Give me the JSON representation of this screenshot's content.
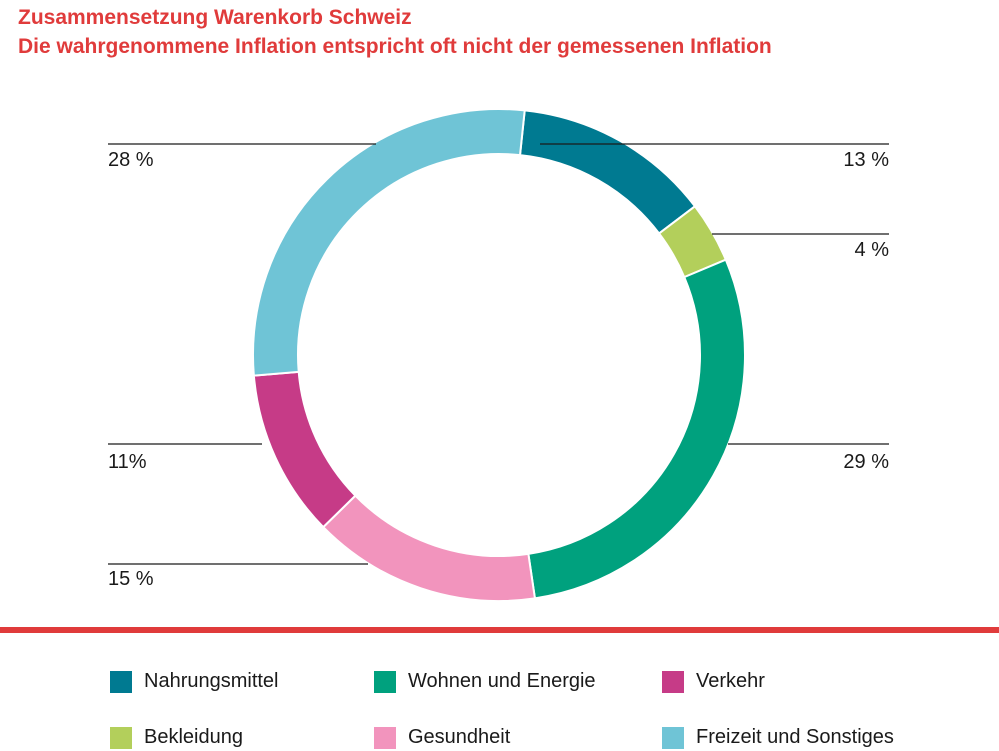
{
  "title": "Zusammensetzung Warenkorb Schweiz",
  "subtitle": "Die wahrgenommene Inflation entspricht oft nicht der gemessenen Inflation",
  "chart_data": {
    "type": "pie",
    "variant": "donut",
    "title": "Zusammensetzung Warenkorb Schweiz",
    "subtitle": "Die wahrgenommene Inflation entspricht oft nicht der gemessenen Inflation",
    "unit": "%",
    "slices": [
      {
        "name": "Nahrungsmittel",
        "value": 13,
        "label": "13 %",
        "color": "#007a91"
      },
      {
        "name": "Bekleidung",
        "value": 4,
        "label": "4 %",
        "color": "#b3cf5b"
      },
      {
        "name": "Wohnen und Energie",
        "value": 29,
        "label": "29 %",
        "color": "#00a17e"
      },
      {
        "name": "Gesundheit",
        "value": 15,
        "label": "15 %",
        "color": "#f294bd"
      },
      {
        "name": "Verkehr",
        "value": 11,
        "label": "11%",
        "color": "#c63b87"
      },
      {
        "name": "Freizeit und Sonstiges",
        "value": 28,
        "label": "28 %",
        "color": "#6fc4d6"
      }
    ],
    "legend_position": "bottom",
    "legend_order": [
      "Nahrungsmittel",
      "Wohnen und Energie",
      "Verkehr",
      "Bekleidung",
      "Gesundheit",
      "Freizeit und Sonstiges"
    ]
  },
  "colors": {
    "accent": "#e03b3b",
    "text": "#1a1a1a"
  }
}
